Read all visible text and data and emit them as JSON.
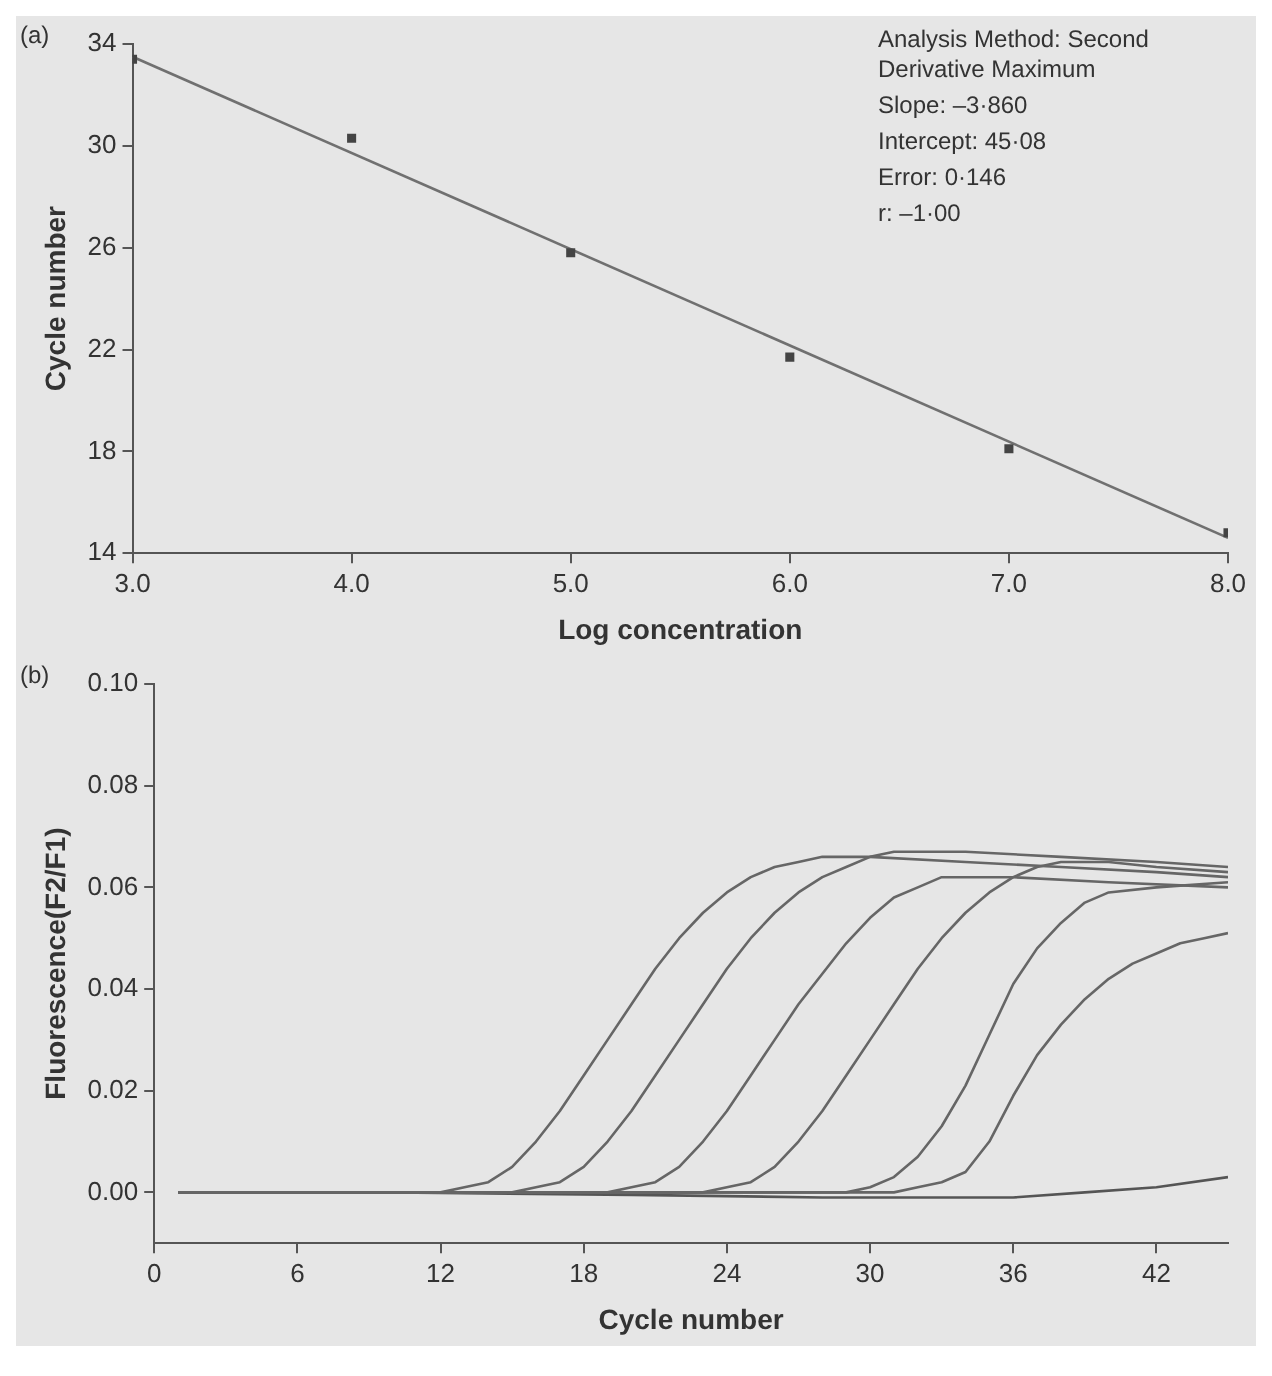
{
  "chart_data": [
    {
      "type": "scatter",
      "xlabel": "Log concentration",
      "ylabel": "Cycle number",
      "xlim": [
        3,
        8
      ],
      "ylim": [
        14,
        34
      ],
      "xticks": [
        {
          "value": 3,
          "label": "3.0"
        },
        {
          "value": 4,
          "label": "4.0"
        },
        {
          "value": 5,
          "label": "5.0"
        },
        {
          "value": 6,
          "label": "6.0"
        },
        {
          "value": 7,
          "label": "7.0"
        },
        {
          "value": 8,
          "label": "8.0"
        }
      ],
      "yticks": [
        14,
        18,
        22,
        26,
        30,
        34
      ],
      "grid": false,
      "legend": false,
      "annotations": [
        "(a)",
        "Analysis Method: Second Derivative Maximum",
        "Slope: –3·860",
        "Intercept: 45·08",
        "Error: 0·146",
        "r: –1·00"
      ],
      "series": [
        {
          "color": "#444444",
          "marker": "square",
          "x": [
            3,
            4,
            5,
            6,
            7,
            8
          ],
          "values": [
            33.4,
            30.3,
            25.8,
            21.7,
            18.1,
            14.8
          ]
        },
        {
          "type": "line",
          "marker": "none",
          "color": "#707070",
          "x": [
            3,
            8
          ],
          "values": [
            33.5,
            14.6
          ]
        }
      ]
    },
    {
      "type": "line",
      "xlabel": "Cycle number",
      "ylabel": "Fluorescence(F2/F1)",
      "xlim": [
        0,
        45
      ],
      "ylim": [
        -0.01,
        0.1
      ],
      "xticks": [
        0,
        6,
        12,
        18,
        24,
        30,
        36,
        42
      ],
      "yticks": [
        {
          "value": 0,
          "label": "0.00"
        },
        {
          "value": 0.02,
          "label": "0.02"
        },
        {
          "value": 0.04,
          "label": "0.04"
        },
        {
          "value": 0.06,
          "label": "0.06"
        },
        {
          "value": 0.08,
          "label": "0.08"
        },
        {
          "value": 0.1,
          "label": "0.10"
        }
      ],
      "grid": false,
      "legend": false,
      "marker": "none",
      "line_style": "solid",
      "annotations": [
        "(b)"
      ],
      "series": [
        {
          "color": "#666666",
          "x": [
            1,
            12,
            13,
            14,
            15,
            16,
            17,
            18,
            19,
            20,
            21,
            22,
            23,
            24,
            25,
            26,
            27,
            28,
            30,
            34,
            38,
            42,
            45
          ],
          "values": [
            0,
            0,
            0.001,
            0.002,
            0.005,
            0.01,
            0.016,
            0.023,
            0.03,
            0.037,
            0.044,
            0.05,
            0.055,
            0.059,
            0.062,
            0.064,
            0.065,
            0.066,
            0.066,
            0.065,
            0.064,
            0.063,
            0.062
          ]
        },
        {
          "color": "#666666",
          "x": [
            1,
            15,
            16,
            17,
            18,
            19,
            20,
            21,
            22,
            23,
            24,
            25,
            26,
            27,
            28,
            29,
            30,
            31,
            34,
            38,
            42,
            45
          ],
          "values": [
            0,
            0,
            0.001,
            0.002,
            0.005,
            0.01,
            0.016,
            0.023,
            0.03,
            0.037,
            0.044,
            0.05,
            0.055,
            0.059,
            0.062,
            0.064,
            0.066,
            0.067,
            0.067,
            0.066,
            0.065,
            0.064
          ]
        },
        {
          "color": "#666666",
          "x": [
            1,
            19,
            20,
            21,
            22,
            23,
            24,
            25,
            26,
            27,
            28,
            29,
            30,
            31,
            32,
            33,
            34,
            36,
            40,
            45
          ],
          "values": [
            0,
            0,
            0.001,
            0.002,
            0.005,
            0.01,
            0.016,
            0.023,
            0.03,
            0.037,
            0.043,
            0.049,
            0.054,
            0.058,
            0.06,
            0.062,
            0.062,
            0.062,
            0.061,
            0.06
          ]
        },
        {
          "color": "#666666",
          "x": [
            1,
            23,
            24,
            25,
            26,
            27,
            28,
            29,
            30,
            31,
            32,
            33,
            34,
            35,
            36,
            37,
            38,
            40,
            42,
            45
          ],
          "values": [
            0,
            0,
            0.001,
            0.002,
            0.005,
            0.01,
            0.016,
            0.023,
            0.03,
            0.037,
            0.044,
            0.05,
            0.055,
            0.059,
            0.062,
            0.064,
            0.065,
            0.065,
            0.064,
            0.063
          ]
        },
        {
          "color": "#666666",
          "x": [
            1,
            29,
            30,
            31,
            32,
            33,
            34,
            35,
            36,
            37,
            38,
            39,
            40,
            42,
            45
          ],
          "values": [
            0,
            0,
            0.001,
            0.003,
            0.007,
            0.013,
            0.021,
            0.031,
            0.041,
            0.048,
            0.053,
            0.057,
            0.059,
            0.06,
            0.061
          ]
        },
        {
          "color": "#666666",
          "x": [
            1,
            31,
            32,
            33,
            34,
            35,
            36,
            37,
            38,
            39,
            40,
            41,
            42,
            43,
            44,
            45
          ],
          "values": [
            0,
            0,
            0.001,
            0.002,
            0.004,
            0.01,
            0.019,
            0.027,
            0.033,
            0.038,
            0.042,
            0.045,
            0.047,
            0.049,
            0.05,
            0.051
          ]
        },
        {
          "color": "#555555",
          "x": [
            1,
            10,
            20,
            28,
            32,
            36,
            39,
            42,
            45
          ],
          "values": [
            0,
            0,
            -0.0005,
            -0.001,
            -0.001,
            -0.001,
            0,
            0.001,
            0.003
          ]
        }
      ]
    }
  ]
}
